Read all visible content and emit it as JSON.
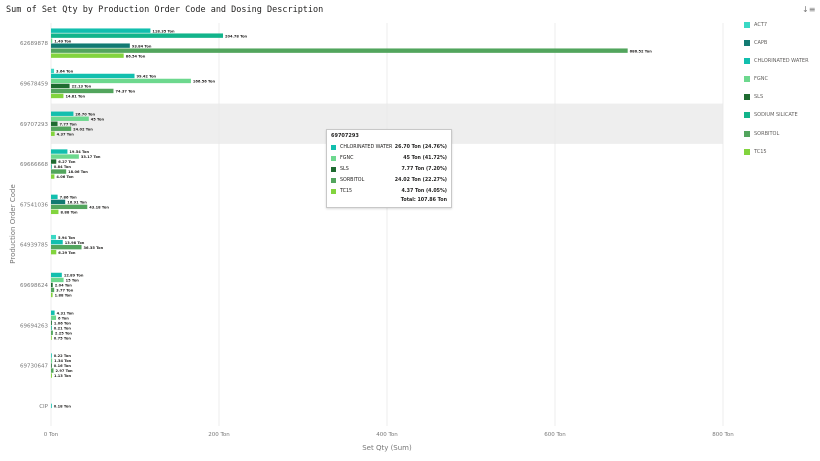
{
  "header": {
    "title": "Sum of Set Qty by Production Order Code and Dosing Description",
    "sort_icon": "sort-icon"
  },
  "legend": [
    {
      "label": "ACT7",
      "color": "#3ad8c4"
    },
    {
      "label": "CAPB",
      "color": "#127a72"
    },
    {
      "label": "CHLORINATED WATER",
      "color": "#12bfae"
    },
    {
      "label": "FGNC",
      "color": "#6dd88e"
    },
    {
      "label": "SLS",
      "color": "#1e6b30"
    },
    {
      "label": "SODIUM SILICATE",
      "color": "#12b48b"
    },
    {
      "label": "SORBITOL",
      "color": "#52a55d"
    },
    {
      "label": "TC15",
      "color": "#82d43e"
    }
  ],
  "chart_data": {
    "type": "bar",
    "orientation": "horizontal",
    "title": "Sum of Set Qty by Production Order Code and Dosing Description",
    "xlabel": "Set Qty (Sum)",
    "ylabel": "Production Order Code",
    "xlim": [
      0,
      800
    ],
    "xticks": [
      "0 Ton",
      "200 Ton",
      "400 Ton",
      "600 Ton",
      "800 Ton"
    ],
    "xtick_values": [
      0,
      200,
      400,
      600,
      800
    ],
    "grid": true,
    "legend_position": "right",
    "highlighted_category": "69707293",
    "categories": [
      {
        "code": "62689878",
        "bars": [
          {
            "series": "CHLORINATED WATER",
            "value": 118.35,
            "label": "118.35 Ton"
          },
          {
            "series": "SODIUM SILICATE",
            "value": 204.78,
            "label": "204.78 Ton"
          },
          {
            "series": "FGNC",
            "value": 1.49,
            "label": "1.49 Ton"
          },
          {
            "series": "CAPB",
            "value": 93.84,
            "label": "93.84 Ton"
          },
          {
            "series": "SORBITOL",
            "value": 686.52,
            "label": "686.52 Ton"
          },
          {
            "series": "TC15",
            "value": 86.54,
            "label": "86.54 Ton"
          }
        ]
      },
      {
        "code": "69678459",
        "bars": [
          {
            "series": "ACT7",
            "value": 3.64,
            "label": "3.64 Ton"
          },
          {
            "series": "CHLORINATED WATER",
            "value": 99.42,
            "label": "99.42 Ton"
          },
          {
            "series": "FGNC",
            "value": 166.56,
            "label": "166.56 Ton"
          },
          {
            "series": "SLS",
            "value": 22.13,
            "label": "22.13 Ton"
          },
          {
            "series": "SORBITOL",
            "value": 74.37,
            "label": "74.37 Ton"
          },
          {
            "series": "TC15",
            "value": 14.81,
            "label": "14.81 Ton"
          }
        ]
      },
      {
        "code": "69707293",
        "bars": [
          {
            "series": "CHLORINATED WATER",
            "value": 26.7,
            "label": "26.70 Ton"
          },
          {
            "series": "FGNC",
            "value": 45,
            "label": "45 Ton"
          },
          {
            "series": "SLS",
            "value": 7.77,
            "label": "7.77 Ton"
          },
          {
            "series": "SORBITOL",
            "value": 24.02,
            "label": "24.02 Ton"
          },
          {
            "series": "TC15",
            "value": 4.37,
            "label": "4.37 Ton"
          }
        ]
      },
      {
        "code": "69666668",
        "bars": [
          {
            "series": "CHLORINATED WATER",
            "value": 19.54,
            "label": "19.54 Ton"
          },
          {
            "series": "FGNC",
            "value": 33.17,
            "label": "33.17 Ton"
          },
          {
            "series": "SLS",
            "value": 6.27,
            "label": "6.27 Ton"
          },
          {
            "series": "SODIUM SILICATE",
            "value": 0.84,
            "label": "0.84 Ton"
          },
          {
            "series": "SORBITOL",
            "value": 18.06,
            "label": "18.06 Ton"
          },
          {
            "series": "TC15",
            "value": 4.06,
            "label": "4.06 Ton"
          }
        ]
      },
      {
        "code": "67541036",
        "bars": [
          {
            "series": "CHLORINATED WATER",
            "value": 7.86,
            "label": "7.86 Ton"
          },
          {
            "series": "CAPB",
            "value": 16.91,
            "label": "16.91 Ton"
          },
          {
            "series": "SORBITOL",
            "value": 43.18,
            "label": "43.18 Ton"
          },
          {
            "series": "TC15",
            "value": 8.88,
            "label": "8.88 Ton"
          }
        ]
      },
      {
        "code": "64939785",
        "bars": [
          {
            "series": "ACT7",
            "value": 5.94,
            "label": "5.94 Ton"
          },
          {
            "series": "CHLORINATED WATER",
            "value": 13.98,
            "label": "13.98 Ton"
          },
          {
            "series": "SORBITOL",
            "value": 36.35,
            "label": "36.35 Ton"
          },
          {
            "series": "TC15",
            "value": 6.29,
            "label": "6.29 Ton"
          }
        ]
      },
      {
        "code": "69698624",
        "bars": [
          {
            "series": "CHLORINATED WATER",
            "value": 12.89,
            "label": "12.89 Ton"
          },
          {
            "series": "FGNC",
            "value": 15,
            "label": "15 Ton"
          },
          {
            "series": "SLS",
            "value": 2.04,
            "label": "2.04 Ton"
          },
          {
            "series": "SORBITOL",
            "value": 3.77,
            "label": "3.77 Ton"
          },
          {
            "series": "TC15",
            "value": 1.88,
            "label": "1.88 Ton"
          }
        ]
      },
      {
        "code": "69694263",
        "bars": [
          {
            "series": "CHLORINATED WATER",
            "value": 4.31,
            "label": "4.31 Ton"
          },
          {
            "series": "FGNC",
            "value": 6,
            "label": "6 Ton"
          },
          {
            "series": "SLS",
            "value": 1.06,
            "label": "1.06 Ton"
          },
          {
            "series": "SODIUM SILICATE",
            "value": 0.21,
            "label": "0.21 Ton"
          },
          {
            "series": "SORBITOL",
            "value": 2.25,
            "label": "2.25 Ton"
          },
          {
            "series": "TC15",
            "value": 0.75,
            "label": "0.75 Ton"
          }
        ]
      },
      {
        "code": "69730647",
        "bars": [
          {
            "series": "CHLORINATED WATER",
            "value": 0.22,
            "label": "0.22 Ton"
          },
          {
            "series": "FGNC",
            "value": 1.34,
            "label": "1.34 Ton"
          },
          {
            "series": "SLS",
            "value": 0.16,
            "label": "0.16 Ton"
          },
          {
            "series": "SORBITOL",
            "value": 2.97,
            "label": "2.97 Ton"
          },
          {
            "series": "TC15",
            "value": 1.13,
            "label": "1.13 Ton"
          }
        ]
      },
      {
        "code": "CIP",
        "bars": [
          {
            "series": "CHLORINATED WATER",
            "value": 0.18,
            "label": "0.18 Ton"
          }
        ]
      }
    ]
  },
  "tooltip": {
    "title": "69707293",
    "rows": [
      {
        "name": "CHLORINATED WATER",
        "value": "26.70 Ton (24.76%)",
        "color": "#12bfae"
      },
      {
        "name": "FGNC",
        "value": "45 Ton (41.72%)",
        "color": "#6dd88e"
      },
      {
        "name": "SLS",
        "value": "7.77 Ton (7.20%)",
        "color": "#1e6b30"
      },
      {
        "name": "SORBITOL",
        "value": "24.02 Ton (22.27%)",
        "color": "#52a55d"
      },
      {
        "name": "TC15",
        "value": "4.37 Ton (4.05%)",
        "color": "#82d43e"
      }
    ],
    "total": "Total: 107.86 Ton"
  }
}
